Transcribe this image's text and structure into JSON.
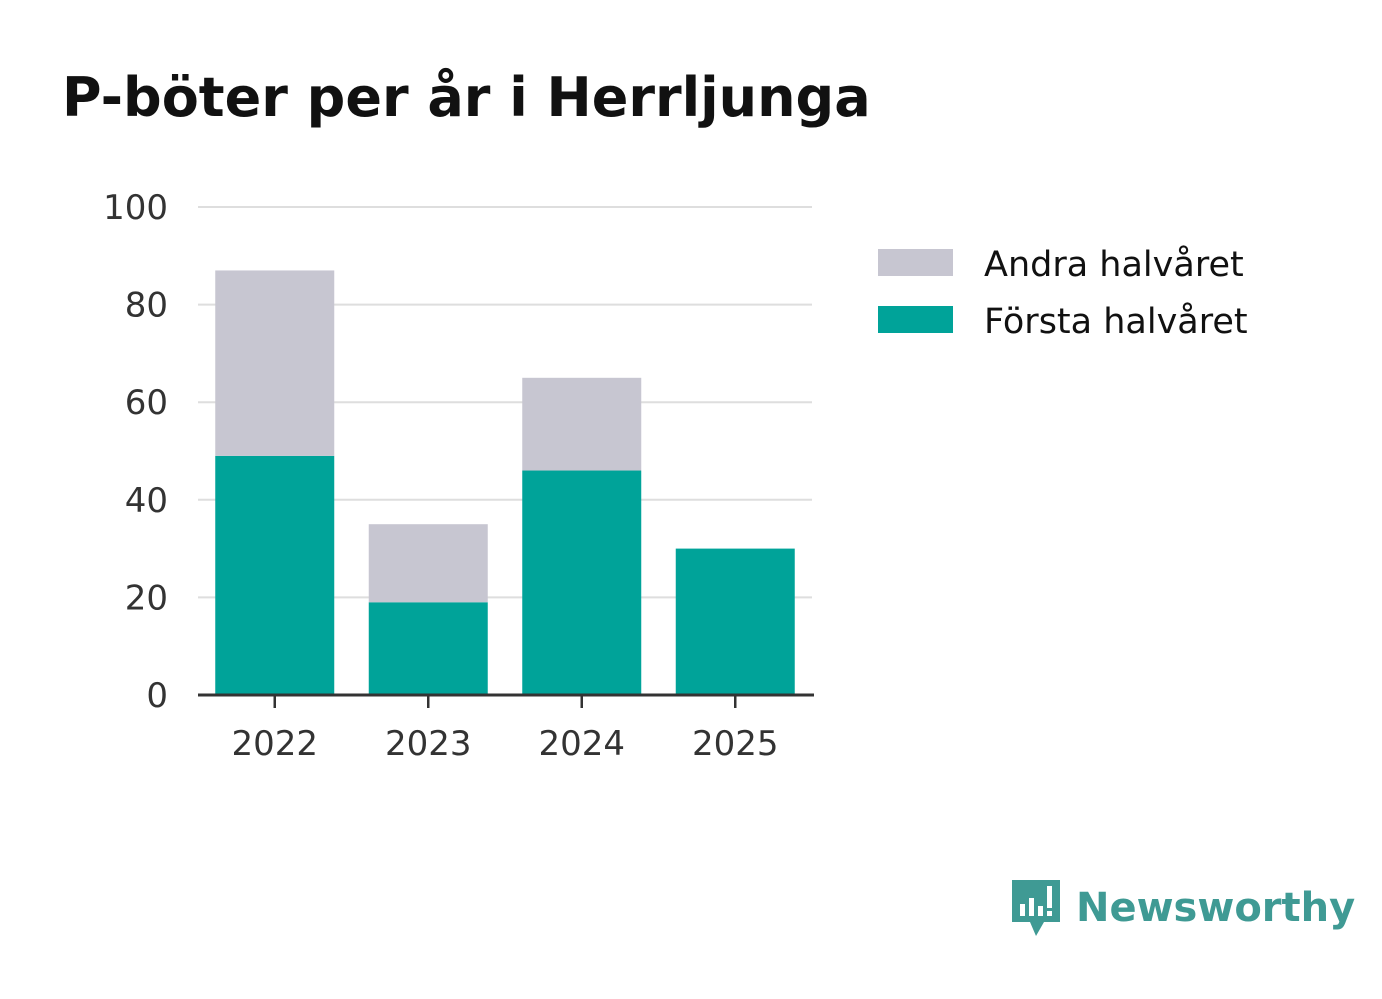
{
  "title": "P-böter per år i Herrljunga",
  "brand": {
    "name": "Newsworthy",
    "icon": "newsworthy-logo-icon",
    "color": "#3f9a94"
  },
  "chart_data": {
    "type": "bar",
    "stacked": true,
    "title": "P-böter per år i Herrljunga",
    "categories": [
      "2022",
      "2023",
      "2024",
      "2025"
    ],
    "series": [
      {
        "name": "Första halvåret",
        "values": [
          49,
          19,
          46,
          30
        ],
        "color": "#00a399"
      },
      {
        "name": "Andra halvåret",
        "values": [
          38,
          16,
          19,
          0
        ],
        "color": "#c7c6d1"
      }
    ],
    "ylim": [
      0,
      100
    ],
    "yticks": [
      0,
      20,
      40,
      60,
      80,
      100
    ],
    "grid": true,
    "legend": "right",
    "legend_order": [
      "Andra halvåret",
      "Första halvåret"
    ]
  }
}
